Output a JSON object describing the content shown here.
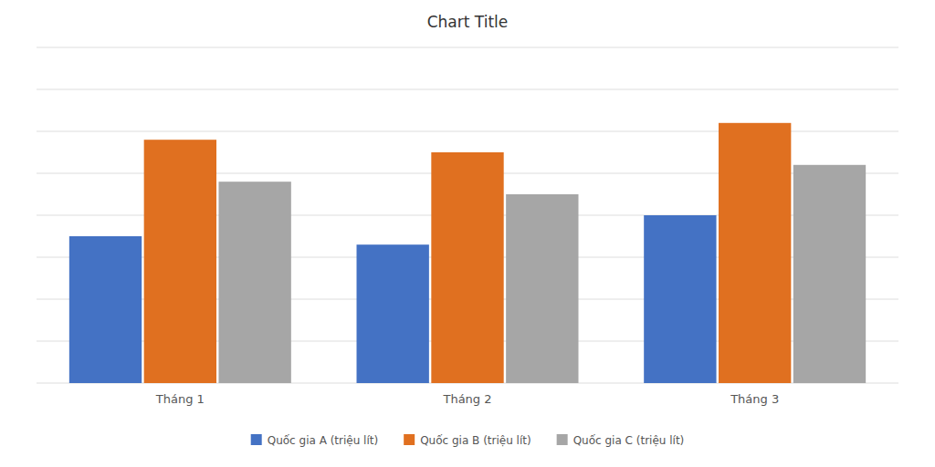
{
  "chart_data": {
    "type": "bar",
    "title": "Chart Title",
    "categories": [
      "Tháng 1",
      "Tháng 2",
      "Tháng 3"
    ],
    "series": [
      {
        "name": "Quốc gia A (triệu lít)",
        "color": "#4472C4",
        "values": [
          3.5,
          3.3,
          4.0
        ]
      },
      {
        "name": "Quốc gia B (triệu lít)",
        "color": "#E07020",
        "values": [
          5.8,
          5.5,
          6.2
        ]
      },
      {
        "name": "Quốc gia C (triệu lít)",
        "color": "#A6A6A6",
        "values": [
          4.8,
          4.5,
          5.2
        ]
      }
    ],
    "ylim": [
      0,
      8
    ],
    "yticks": [
      0,
      1,
      2,
      3,
      4,
      5,
      6,
      7,
      8
    ],
    "grid": true,
    "legend": "bottom",
    "tick_labels": "x"
  }
}
